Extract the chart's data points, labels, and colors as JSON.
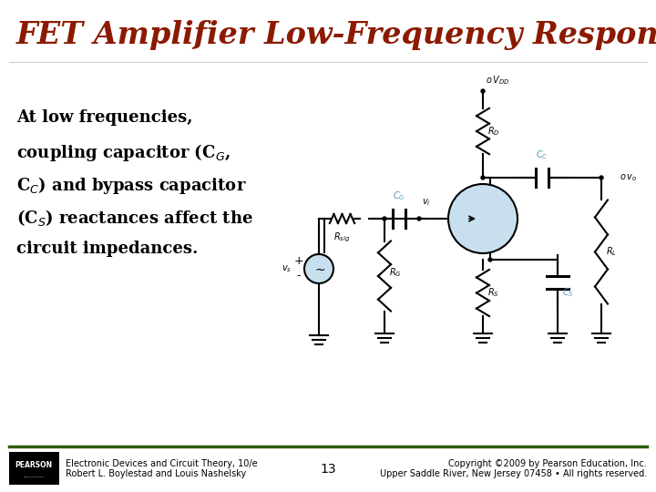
{
  "title": "FET Amplifier Low-Frequency Response",
  "title_color": "#8B1A00",
  "title_fontsize": 24,
  "body_lines": [
    "At low frequencies,",
    "coupling capacitor (C$_{G}$,",
    "C$_{C}$) and bypass capacitor",
    "(C$_{S}$) reactances affect the",
    "circuit impedances."
  ],
  "body_fontsize": 13,
  "body_color": "#000000",
  "bg_color": "#FFFFFF",
  "footer_line_color": "#2E5E00",
  "footer_left1": "Electronic Devices and Circuit Theory, 10/e",
  "footer_left2": "Robert L. Boylestad and Louis Nashelsky",
  "footer_center": "13",
  "footer_right1": "Copyright ©2009 by Pearson Education, Inc.",
  "footer_right2": "Upper Saddle River, New Jersey 07458 • All rights reserved.",
  "footer_fontsize": 7,
  "circuit_color": "#000000",
  "circuit_label_color": "#5599BB",
  "fet_circle_color": "#C8E0EE"
}
